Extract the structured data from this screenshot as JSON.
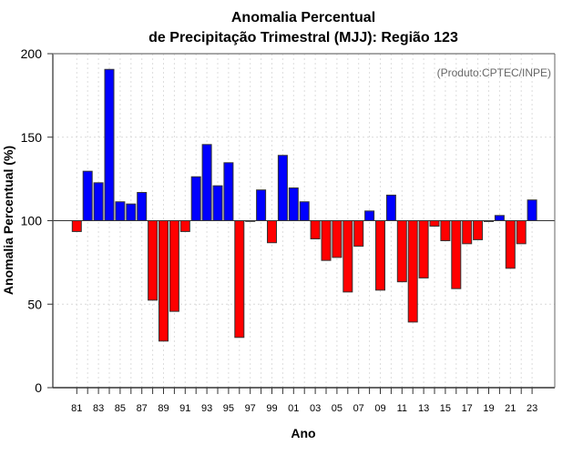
{
  "chart_data": {
    "type": "bar",
    "title_lines": [
      "Anomalia Percentual",
      "de Precipitação Trimestral (MJJ): Região 123"
    ],
    "xlabel": "Ano",
    "ylabel": "Anomalia Percentual (%)",
    "credit": "(Produto:CPTEC/INPE)",
    "ylim": [
      0,
      200
    ],
    "yticks": [
      0,
      50,
      100,
      150,
      200
    ],
    "baseline": 100,
    "grid": true,
    "colors": {
      "above": "#0000ff",
      "below": "#ff0000",
      "edge": "#333333"
    },
    "categories": [
      "1981",
      "1982",
      "1983",
      "1984",
      "1985",
      "1986",
      "1987",
      "1988",
      "1989",
      "1990",
      "1991",
      "1992",
      "1993",
      "1994",
      "1995",
      "1996",
      "1997",
      "1998",
      "1999",
      "2000",
      "2001",
      "2002",
      "2003",
      "2004",
      "2005",
      "2006",
      "2007",
      "2008",
      "2009",
      "2010",
      "2011",
      "2012",
      "2013",
      "2014",
      "2015",
      "2016",
      "2017",
      "2018",
      "2019",
      "2020",
      "2021",
      "2022",
      "2023"
    ],
    "xtick_labels": [
      "81",
      "83",
      "85",
      "87",
      "89",
      "91",
      "93",
      "95",
      "97",
      "99",
      "01",
      "03",
      "05",
      "07",
      "09",
      "11",
      "13",
      "15",
      "17",
      "19",
      "21",
      "23"
    ],
    "values": [
      93.5,
      129.6,
      122.7,
      190.6,
      111.3,
      110.0,
      116.9,
      52.4,
      27.9,
      45.7,
      93.5,
      126.3,
      145.6,
      120.9,
      134.7,
      30.1,
      99.8,
      118.4,
      86.8,
      139.1,
      119.6,
      111.3,
      89.1,
      76.2,
      78.0,
      57.3,
      84.7,
      105.8,
      58.4,
      115.3,
      63.4,
      39.3,
      65.7,
      96.7,
      88.0,
      59.3,
      86.2,
      88.6,
      99.5,
      103.1,
      71.5,
      86.2,
      112.4
    ]
  }
}
